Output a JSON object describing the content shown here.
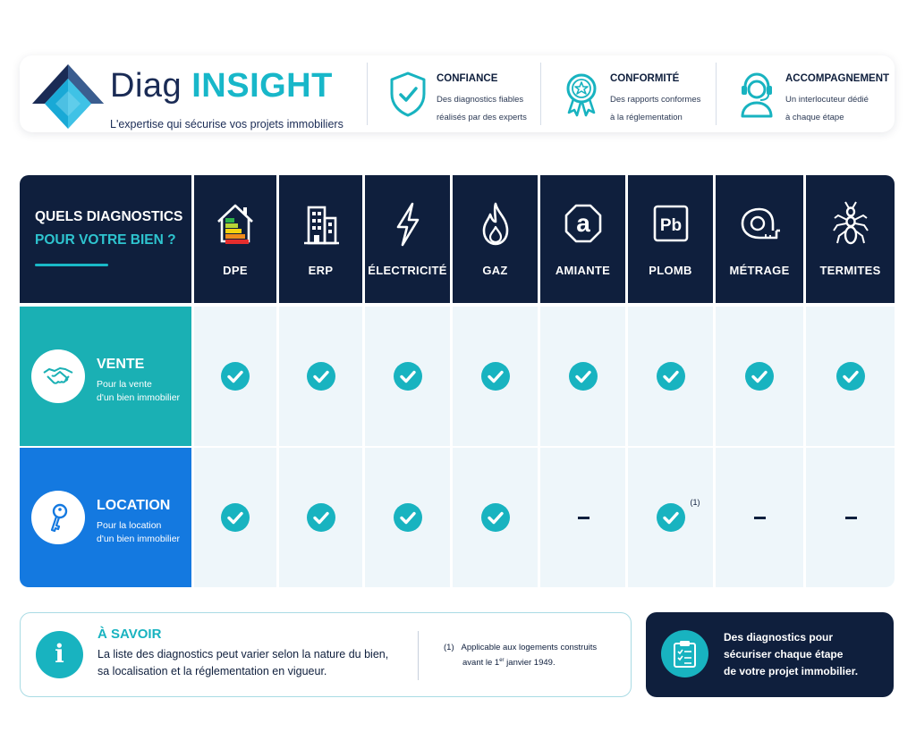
{
  "brand": {
    "name_part1": "Diag",
    "name_part2": "INSIGHT",
    "tagline": "L'expertise qui sécurise vos projets immobiliers"
  },
  "features": [
    {
      "icon": "shield-check-icon",
      "title": "CONFIANCE",
      "line1": "Des diagnostics fiables",
      "line2": "réalisés par des experts"
    },
    {
      "icon": "award-star-icon",
      "title": "CONFORMITÉ",
      "line1": "Des rapports conformes",
      "line2": "à la réglementation"
    },
    {
      "icon": "headset-user-icon",
      "title": "ACCOMPAGNEMENT",
      "line1": "Un interlocuteur dédié",
      "line2": "à chaque étape"
    }
  ],
  "table": {
    "corner": {
      "line1": "QUELS DIAGNOSTICS",
      "line2": "POUR VOTRE BIEN ?"
    },
    "columns": [
      {
        "key": "dpe",
        "label": "DPE",
        "icon": "house-energy-icon"
      },
      {
        "key": "erp",
        "label": "ERP",
        "icon": "building-icon"
      },
      {
        "key": "electricite",
        "label": "ÉLECTRICITÉ",
        "icon": "lightning-icon"
      },
      {
        "key": "gaz",
        "label": "GAZ",
        "icon": "flame-icon"
      },
      {
        "key": "amiante",
        "label": "AMIANTE",
        "icon": "asbestos-a-icon"
      },
      {
        "key": "plomb",
        "label": "PLOMB",
        "icon": "lead-pb-icon"
      },
      {
        "key": "metrage",
        "label": "MÉTRAGE",
        "icon": "tape-measure-icon"
      },
      {
        "key": "termites",
        "label": "TERMITES",
        "icon": "termite-icon"
      }
    ],
    "rows": [
      {
        "key": "vente",
        "title": "VENTE",
        "sub1": "Pour la vente",
        "sub2": "d'un bien immobilier",
        "icon": "handshake-icon",
        "cells": [
          "check",
          "check",
          "check",
          "check",
          "check",
          "check",
          "check",
          "check"
        ],
        "notes": [
          "",
          "",
          "",
          "",
          "",
          "",
          "",
          ""
        ]
      },
      {
        "key": "location",
        "title": "LOCATION",
        "sub1": "Pour la location",
        "sub2": "d'un bien immobilier",
        "icon": "key-icon",
        "cells": [
          "check",
          "check",
          "check",
          "check",
          "dash",
          "check",
          "dash",
          "dash"
        ],
        "notes": [
          "",
          "",
          "",
          "",
          "",
          "(1)",
          "",
          ""
        ]
      }
    ]
  },
  "info": {
    "icon": "info-icon",
    "icon_text": "i",
    "title": "À SAVOIR",
    "line1": "La liste des diagnostics peut varier selon la nature du bien,",
    "line2": "sa localisation et la réglementation en vigueur.",
    "footnote_marker": "(1)",
    "footnote_line1": "Applicable aux logements construits",
    "footnote_line2_a": "avant le 1",
    "footnote_line2_sup": "er",
    "footnote_line2_b": " janvier 1949."
  },
  "promo": {
    "icon": "clipboard-checklist-icon",
    "line1": "Des diagnostics pour",
    "line2": "sécuriser chaque étape",
    "line3": "de votre projet immobilier."
  },
  "colors": {
    "navy": "#0f1f3d",
    "teal": "#18b3c0",
    "blue": "#1479e0",
    "vente_bg": "#1ab0b4",
    "cell_bg": "#eef6fa"
  }
}
